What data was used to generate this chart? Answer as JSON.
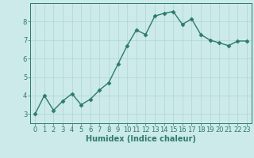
{
  "x": [
    0,
    1,
    2,
    3,
    4,
    5,
    6,
    7,
    8,
    9,
    10,
    11,
    12,
    13,
    14,
    15,
    16,
    17,
    18,
    19,
    20,
    21,
    22,
    23
  ],
  "y": [
    3.0,
    4.0,
    3.2,
    3.7,
    4.1,
    3.5,
    3.8,
    4.3,
    4.7,
    5.7,
    6.7,
    7.55,
    7.3,
    8.3,
    8.45,
    8.55,
    7.85,
    8.15,
    7.3,
    7.0,
    6.85,
    6.7,
    6.95,
    6.95
  ],
  "line_color": "#2d7a6e",
  "marker": "D",
  "marker_size": 2.5,
  "bg_color": "#cceaea",
  "grid_color": "#afd4d4",
  "xlabel": "Humidex (Indice chaleur)",
  "ylim": [
    2.5,
    9.0
  ],
  "xlim": [
    -0.5,
    23.5
  ],
  "yticks": [
    3,
    4,
    5,
    6,
    7,
    8
  ],
  "xticks": [
    0,
    1,
    2,
    3,
    4,
    5,
    6,
    7,
    8,
    9,
    10,
    11,
    12,
    13,
    14,
    15,
    16,
    17,
    18,
    19,
    20,
    21,
    22,
    23
  ],
  "tick_color": "#2d7a6e",
  "label_color": "#2d7a6e",
  "spine_color": "#2d7a6e",
  "xlabel_fontsize": 7,
  "tick_fontsize": 6,
  "linewidth": 1.0
}
